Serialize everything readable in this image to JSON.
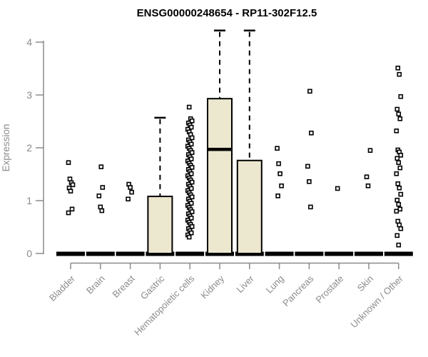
{
  "chart_data": {
    "type": "boxplot",
    "title": "ENSG00000248654 - RP11-302F12.5",
    "ylabel": "Expression",
    "ylim": [
      0,
      4
    ],
    "yticks": [
      0,
      1,
      2,
      3,
      4
    ],
    "grid": false,
    "legend": "none",
    "categories": [
      "Bladder",
      "Brain",
      "Breast",
      "Gastric",
      "Hematopoietic cells",
      "Kidney",
      "Liver",
      "Lung",
      "Pancreas",
      "Prostate",
      "Skin",
      "Unknown / Other"
    ],
    "series": [
      {
        "name": "Bladder",
        "q1": 0,
        "median": 0,
        "q3": 0,
        "whisker_high": 0,
        "points": [
          1.72,
          1.41,
          1.34,
          1.3,
          1.24,
          1.18,
          0.84,
          0.77
        ]
      },
      {
        "name": "Brain",
        "q1": 0,
        "median": 0,
        "q3": 0,
        "whisker_high": 0,
        "points": [
          1.64,
          1.25,
          1.09,
          0.88,
          0.81
        ]
      },
      {
        "name": "Breast",
        "q1": 0,
        "median": 0,
        "q3": 0,
        "whisker_high": 0,
        "points": [
          1.31,
          1.25,
          1.16,
          1.03
        ]
      },
      {
        "name": "Gastric",
        "q1": 0,
        "median": 0,
        "q3": 1.08,
        "whisker_high": 2.57,
        "points": []
      },
      {
        "name": "Hematopoietic cells",
        "q1": 0,
        "median": 0,
        "q3": 0,
        "whisker_high": 0,
        "points": [
          2.77,
          2.55,
          2.51,
          2.47,
          2.43,
          2.39,
          2.35,
          2.3,
          2.25,
          2.19,
          2.15,
          2.11,
          2.07,
          2.03,
          1.99,
          1.95,
          1.91,
          1.87,
          1.83,
          1.79,
          1.75,
          1.71,
          1.67,
          1.63,
          1.59,
          1.55,
          1.51,
          1.47,
          1.43,
          1.39,
          1.35,
          1.31,
          1.27,
          1.23,
          1.19,
          1.15,
          1.11,
          1.07,
          1.03,
          0.99,
          0.95,
          0.91,
          0.87,
          0.83,
          0.79,
          0.75,
          0.71,
          0.67,
          0.63,
          0.59,
          0.55,
          0.51,
          0.47,
          0.43,
          0.39,
          0.35,
          0.31
        ]
      },
      {
        "name": "Kidney",
        "q1": 0,
        "median": 1.97,
        "q3": 2.93,
        "whisker_high": 4.22,
        "points": []
      },
      {
        "name": "Liver",
        "q1": 0,
        "median": 0,
        "q3": 1.76,
        "whisker_high": 4.22,
        "points": []
      },
      {
        "name": "Lung",
        "q1": 0,
        "median": 0,
        "q3": 0,
        "whisker_high": 0,
        "points": [
          1.99,
          1.7,
          1.51,
          1.28,
          1.09
        ]
      },
      {
        "name": "Pancreas",
        "q1": 0,
        "median": 0,
        "q3": 0,
        "whisker_high": 0,
        "points": [
          3.07,
          2.28,
          1.65,
          1.36,
          0.88
        ]
      },
      {
        "name": "Prostate",
        "q1": 0,
        "median": 0,
        "q3": 0,
        "whisker_high": 0,
        "points": [
          1.23
        ]
      },
      {
        "name": "Skin",
        "q1": 0,
        "median": 0,
        "q3": 0,
        "whisker_high": 0,
        "points": [
          1.95,
          1.45,
          1.28
        ]
      },
      {
        "name": "Unknown / Other",
        "q1": 0,
        "median": 0,
        "q3": 0,
        "whisker_high": 0,
        "points": [
          3.51,
          3.39,
          2.97,
          2.73,
          2.64,
          2.55,
          2.32,
          1.96,
          1.92,
          1.86,
          1.8,
          1.72,
          1.62,
          1.51,
          1.32,
          1.24,
          1.12,
          1.01,
          0.93,
          0.84,
          0.8,
          0.61,
          0.54,
          0.47,
          0.34,
          0.16
        ]
      }
    ],
    "colors": {
      "box_fill": "#ece7cf",
      "box_stroke": "#000000",
      "median": "#000000",
      "axis": "#8b8b8b",
      "tick_text": "#8b8b8b",
      "title_text": "#000000",
      "point": "#000000"
    }
  }
}
